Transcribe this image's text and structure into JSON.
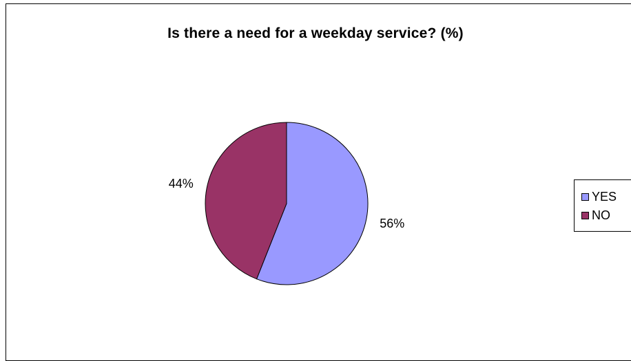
{
  "chart_data": {
    "type": "pie",
    "title": "Is there a need for a weekday service? (%)",
    "categories": [
      "YES",
      "NO"
    ],
    "values": [
      56,
      44
    ],
    "labels": [
      "56%",
      "44%"
    ],
    "colors": [
      "#9999ff",
      "#993366"
    ],
    "legend_position": "right"
  }
}
